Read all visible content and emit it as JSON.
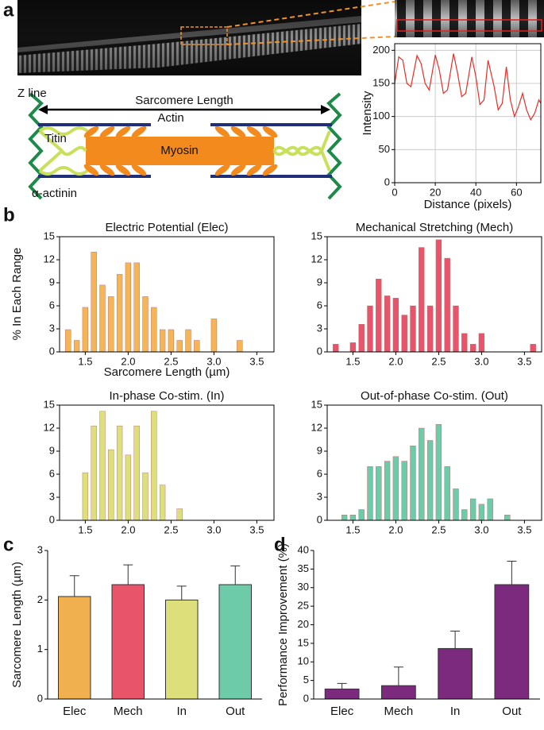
{
  "panels": [
    "a",
    "b",
    "c",
    "d"
  ],
  "diagram": {
    "z_line": "Z line",
    "sarcomere_length": "Sarcomere Length",
    "actin": "Actin",
    "titin": "Titin",
    "myosin": "Myosin",
    "alpha_actinin": "α-actinin"
  },
  "chart_data": [
    {
      "type": "line",
      "xlabel": "Distance (pixels)",
      "ylabel": "Intensity",
      "color": "#e0302a",
      "grid": true,
      "x": [
        0,
        2,
        4,
        6,
        8,
        11,
        13,
        15,
        17,
        20,
        22,
        24,
        26,
        29,
        31,
        33,
        35,
        38,
        40,
        42,
        44,
        46,
        49,
        51,
        53,
        55,
        57,
        59,
        61,
        63,
        65,
        67,
        69,
        71,
        72
      ],
      "values": [
        150,
        190,
        185,
        150,
        145,
        192,
        180,
        150,
        140,
        193,
        170,
        135,
        140,
        195,
        165,
        130,
        135,
        190,
        160,
        118,
        125,
        185,
        145,
        110,
        120,
        175,
        125,
        100,
        115,
        135,
        110,
        95,
        105,
        125,
        120
      ],
      "xlim": [
        0,
        72
      ],
      "xticks": [
        0,
        20,
        40,
        60
      ],
      "ylim": [
        0,
        210
      ],
      "yticks": [
        0,
        50,
        100,
        150,
        200
      ]
    },
    {
      "type": "histogram",
      "title": "Electric Potential (Elec)",
      "xlabel": "Sarcomere Length (µm)",
      "ylabel": "% In Each Range",
      "color": "#f5b556",
      "bins": [
        1.25,
        1.35,
        1.45,
        1.55,
        1.65,
        1.75,
        1.85,
        1.95,
        2.05,
        2.15,
        2.25,
        2.35,
        2.45,
        2.55,
        2.65,
        2.75,
        2.85,
        2.95,
        3.05,
        3.15,
        3.25,
        3.35
      ],
      "values": [
        2.9,
        1.5,
        5.8,
        13.0,
        8.7,
        7.2,
        10.1,
        11.6,
        11.6,
        7.2,
        5.8,
        2.9,
        2.9,
        1.5,
        2.9,
        1.5,
        0,
        4.3,
        0,
        0,
        1.5
      ],
      "xlim": [
        1.2,
        3.7
      ],
      "xticks": [
        1.5,
        {
          "value": 2,
          "label": "2.0"
        },
        2.5,
        {
          "value": 3,
          "label": "3.0"
        },
        3.5
      ],
      "ylim": [
        0,
        15
      ],
      "yticks": [
        0,
        3,
        6,
        9,
        12,
        15
      ]
    },
    {
      "type": "histogram",
      "title": "Mechanical Stretching (Mech)",
      "color": "#e8546a",
      "bins": [
        1.25,
        1.35,
        1.45,
        1.55,
        1.65,
        1.75,
        1.85,
        1.95,
        2.05,
        2.15,
        2.25,
        2.35,
        2.45,
        2.55,
        2.65,
        2.75,
        2.85,
        2.95,
        3.05,
        3.15,
        3.25,
        3.35,
        3.45,
        3.55,
        3.65
      ],
      "values": [
        1.0,
        0,
        1.2,
        3.6,
        6.0,
        9.5,
        7.3,
        7.0,
        4.8,
        6.0,
        13.6,
        6.0,
        14.6,
        12.2,
        6.0,
        2.4,
        1.0,
        2.4,
        0,
        0,
        0,
        0,
        0,
        1.0
      ],
      "xlim": [
        1.2,
        3.7
      ],
      "xticks": [
        1.5,
        {
          "value": 2,
          "label": "2.0"
        },
        2.5,
        {
          "value": 3,
          "label": "3.0"
        },
        3.5
      ],
      "ylim": [
        0,
        15
      ],
      "yticks": [
        0,
        3,
        6,
        9,
        12,
        15
      ]
    },
    {
      "type": "histogram",
      "title": "In-phase Co-stim. (In)",
      "color": "#dde07a",
      "bins": [
        1.45,
        1.55,
        1.65,
        1.75,
        1.85,
        1.95,
        2.05,
        2.15,
        2.25,
        2.35,
        2.45,
        2.55,
        2.65
      ],
      "values": [
        6.2,
        12.3,
        14.2,
        9.2,
        12.3,
        8.5,
        12.3,
        6.2,
        14.2,
        4.6,
        0,
        1.5
      ],
      "xlim": [
        1.2,
        3.7
      ],
      "xticks": [
        1.5,
        {
          "value": 2,
          "label": "2.0"
        },
        2.5,
        {
          "value": 3,
          "label": "3.0"
        },
        3.5
      ],
      "ylim": [
        0,
        15
      ],
      "yticks": [
        0,
        3,
        6,
        9,
        12,
        15
      ]
    },
    {
      "type": "histogram",
      "title": "Out-of-phase Co-stim. (Out)",
      "color": "#6ecbaa",
      "bins": [
        1.35,
        1.45,
        1.55,
        1.65,
        1.75,
        1.85,
        1.95,
        2.05,
        2.15,
        2.25,
        2.35,
        2.45,
        2.55,
        2.65,
        2.75,
        2.85,
        2.95,
        3.05,
        3.15,
        3.25,
        3.35
      ],
      "values": [
        0.7,
        0.7,
        1.4,
        7.0,
        7.0,
        7.7,
        8.3,
        7.7,
        9.7,
        12.0,
        10.4,
        12.5,
        7.0,
        4.1,
        1.4,
        2.8,
        2.1,
        2.8,
        0,
        0.7
      ],
      "xlim": [
        1.2,
        3.7
      ],
      "xticks": [
        1.5,
        {
          "value": 2,
          "label": "2.0"
        },
        2.5,
        {
          "value": 3,
          "label": "3.0"
        },
        3.5
      ],
      "ylim": [
        0,
        15
      ],
      "yticks": [
        0,
        3,
        6,
        9,
        12,
        15
      ]
    },
    {
      "type": "bar",
      "ylabel": "Sarcomere Length (µm)",
      "categories": [
        "Elec",
        "Mech",
        "In",
        "Out"
      ],
      "values": [
        2.07,
        2.31,
        2.0,
        2.31
      ],
      "errors": [
        0.42,
        0.4,
        0.28,
        0.38
      ],
      "colors": [
        "#f0b050",
        "#e8546a",
        "#dde07a",
        "#6ecbaa"
      ],
      "ylim": [
        0,
        3
      ],
      "yticks": [
        0,
        1,
        2,
        3
      ]
    },
    {
      "type": "bar",
      "ylabel": "Performance Improvement (%)",
      "categories": [
        "Elec",
        "Mech",
        "In",
        "Out"
      ],
      "values": [
        2.7,
        3.6,
        13.6,
        30.8
      ],
      "errors": [
        1.5,
        5.0,
        4.7,
        6.3
      ],
      "color": "#7b2a7e",
      "ylim": [
        0,
        40
      ],
      "yticks": [
        0,
        5,
        10,
        15,
        20,
        25,
        30,
        35,
        40
      ]
    }
  ]
}
